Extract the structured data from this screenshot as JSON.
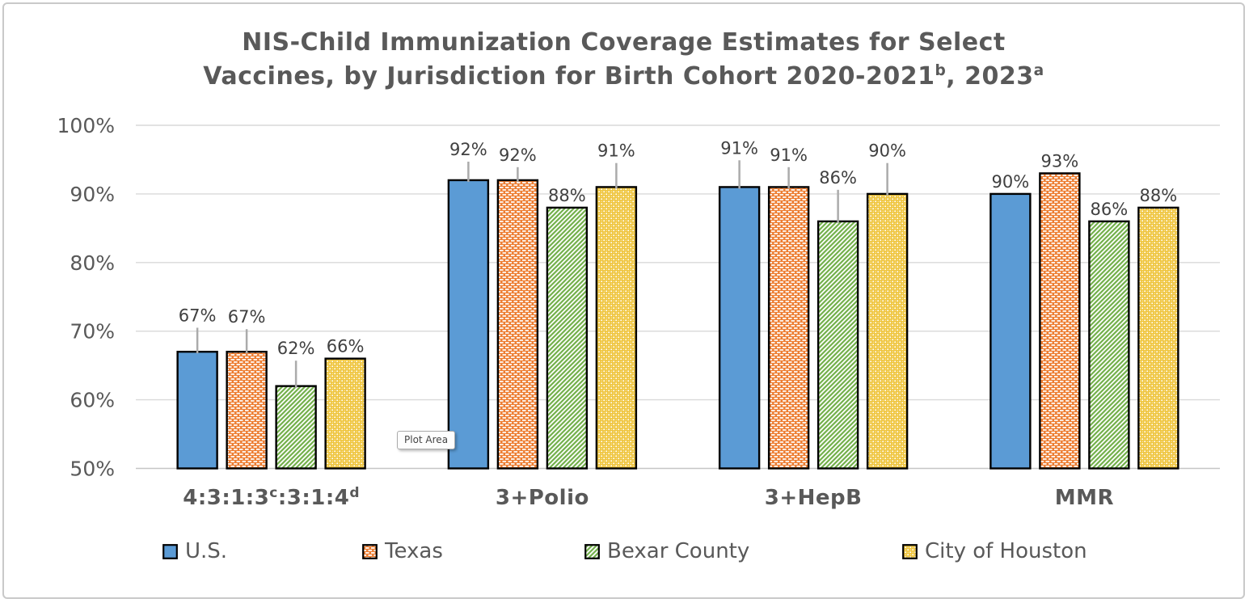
{
  "title": {
    "line1": "NIS-Child Immunization Coverage Estimates for Select",
    "line2_parts": [
      {
        "text": "Vaccines, by Jurisdiction for Birth Cohort 2020-2021"
      },
      {
        "text": "b",
        "sup": true
      },
      {
        "text": ", 2023"
      },
      {
        "text": "a",
        "sup": true
      }
    ],
    "full_text": "NIS-Child Immunization Coverage Estimates for Select Vaccines, by Jurisdiction for Birth Cohort 2020-2021b, 2023a"
  },
  "plot_area_tooltip": "Plot Area",
  "colors": {
    "us_blue": "#5B9BD5",
    "texas_orange": "#ED7D31",
    "bexar_green": "#6FAE46",
    "houston_yellow": "#EFC53E",
    "gridline": "#D9D9D9",
    "axis_baseline": "#C6C6C6",
    "axis_text": "#595959",
    "data_label_text": "#404040",
    "error_bar": "#ABABAB",
    "bar_outline": "#000000"
  },
  "chart_data": {
    "type": "bar",
    "subtype": "grouped-vertical-with-pattern-fills",
    "title": "NIS-Child Immunization Coverage Estimates for Select Vaccines, by Jurisdiction for Birth Cohort 2020-2021b, 2023a",
    "categories": [
      "4:3:1:3c:3:1:4d",
      "3+Polio",
      "3+HepB",
      "MMR"
    ],
    "categories_parts": [
      [
        {
          "text": "4:3:1:3"
        },
        {
          "text": "c",
          "sup": true
        },
        {
          "text": ":3:1:4"
        },
        {
          "text": "d",
          "sup": true
        }
      ],
      [
        {
          "text": "3+Polio"
        }
      ],
      [
        {
          "text": "3+HepB"
        }
      ],
      [
        {
          "text": "MMR"
        }
      ]
    ],
    "series": [
      {
        "name": "U.S.",
        "color": "#5B9BD5",
        "pattern": "solid",
        "values": [
          67,
          92,
          91,
          90
        ],
        "error_upper": [
          70.5,
          94.7,
          94.9,
          null
        ]
      },
      {
        "name": "Texas",
        "color": "#ED7D31",
        "pattern": "brick-dashes",
        "values": [
          67,
          92,
          91,
          93
        ],
        "error_upper": [
          70.3,
          93.9,
          93.9,
          null
        ]
      },
      {
        "name": "Bexar County",
        "color": "#6FAE46",
        "pattern": "diagonal-stripes",
        "values": [
          62,
          88,
          86,
          86
        ],
        "error_upper": [
          65.7,
          null,
          90.6,
          null
        ]
      },
      {
        "name": "City of Houston",
        "color": "#EFC53E",
        "pattern": "dots",
        "values": [
          66,
          91,
          90,
          88
        ],
        "error_upper": [
          null,
          94.5,
          94.5,
          null
        ]
      }
    ],
    "value_suffix": "%",
    "xlabel": "",
    "ylabel": "",
    "ylim": [
      50,
      100
    ],
    "yticks": [
      {
        "value": 50,
        "label": "50%"
      },
      {
        "value": 60,
        "label": "60%"
      },
      {
        "value": 70,
        "label": "70%"
      },
      {
        "value": 80,
        "label": "80%"
      },
      {
        "value": 90,
        "label": "90%"
      },
      {
        "value": 100,
        "label": "100%"
      }
    ],
    "grid": true,
    "legend_position": "bottom"
  }
}
